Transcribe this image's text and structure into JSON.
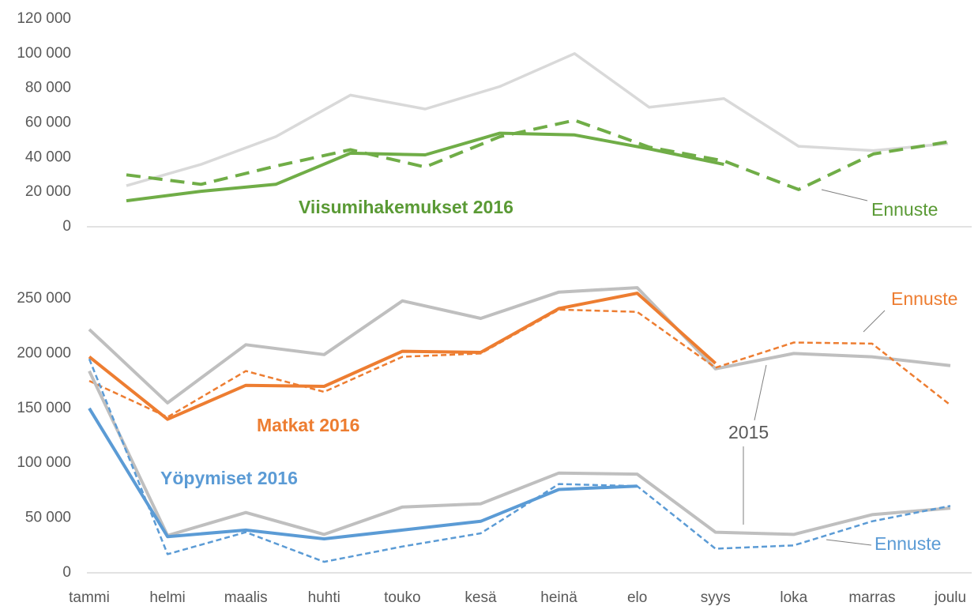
{
  "chart_data": [
    {
      "type": "line",
      "categories": [
        null,
        null,
        null,
        null,
        null,
        null,
        null,
        null,
        null,
        null,
        null,
        null
      ],
      "ylim": [
        0,
        120000
      ],
      "yticks": [
        0,
        {
          "value": 20000,
          "label": "20 000"
        },
        {
          "value": 40000,
          "label": "40 000"
        },
        {
          "value": 60000,
          "label": "60 000"
        },
        {
          "value": 80000,
          "label": "80 000"
        },
        {
          "value": 100000,
          "label": "100 000"
        },
        {
          "value": 120000,
          "label": "120 000"
        }
      ],
      "grid": false,
      "series": [
        {
          "color": "#d9d9d9",
          "dashed": false,
          "values": [
            23700,
            36000,
            52000,
            76000,
            68000,
            81000,
            100000,
            69000,
            74000,
            46500,
            44000,
            48000
          ]
        },
        {
          "color": "#70ad47",
          "dashed": false,
          "values": [
            15000,
            20500,
            24500,
            42500,
            41500,
            54000,
            53000,
            45000,
            36000,
            null,
            null,
            null
          ]
        },
        {
          "color": "#70ad47",
          "dashed": true,
          "values": [
            30000,
            24500,
            35000,
            44500,
            34500,
            52000,
            61500,
            46000,
            38000,
            21500,
            42000,
            49000
          ]
        }
      ],
      "annotations": [
        {
          "text": "Viisumihakemukset 2016",
          "color": "#5a9a35",
          "bold": true
        },
        {
          "text": "Ennuste",
          "color": "#5a9a35",
          "bold": false
        }
      ]
    },
    {
      "type": "line",
      "categories": [
        "tammi",
        "helmi",
        "maalis",
        "huhti",
        "touko",
        "kesä",
        "heinä",
        "elo",
        "syys",
        "loka",
        "marras",
        "joulu"
      ],
      "ylim": [
        0,
        250000
      ],
      "yticks": [
        0,
        {
          "value": 50000,
          "label": "50 000"
        },
        {
          "value": 100000,
          "label": "100 000"
        },
        {
          "value": 150000,
          "label": "150 000"
        },
        {
          "value": 200000,
          "label": "200 000"
        },
        {
          "value": 250000,
          "label": "250 000"
        }
      ],
      "grid": false,
      "series": [
        {
          "color": "#bfbfbf",
          "dashed": false,
          "values": [
            222000,
            155000,
            208000,
            199000,
            248000,
            232000,
            256000,
            260000,
            186000,
            200000,
            197000,
            189000
          ]
        },
        {
          "color": "#ed7d31",
          "dashed": true,
          "values": [
            175000,
            142000,
            184000,
            165000,
            197000,
            200000,
            240000,
            238000,
            187000,
            210000,
            209000,
            153000
          ]
        },
        {
          "color": "#ed7d31",
          "dashed": false,
          "values": [
            197000,
            140000,
            171000,
            170000,
            202000,
            201000,
            241000,
            255000,
            191000,
            null,
            null,
            null
          ]
        },
        {
          "color": "#bfbfbf",
          "dashed": false,
          "values": [
            184000,
            34000,
            55000,
            35000,
            60000,
            63000,
            91000,
            90000,
            37000,
            35000,
            53000,
            59000
          ]
        },
        {
          "color": "#5b9bd5",
          "dashed": true,
          "values": [
            195000,
            17000,
            37000,
            10000,
            24000,
            36000,
            81000,
            79000,
            22000,
            25000,
            47000,
            61000
          ]
        },
        {
          "color": "#5b9bd5",
          "dashed": false,
          "values": [
            150000,
            33000,
            39000,
            31000,
            39000,
            47000,
            76000,
            79000,
            null,
            null,
            null,
            null
          ]
        }
      ],
      "annotations": [
        {
          "text": "Matkat 2016",
          "color": "#ed7d31",
          "bold": true
        },
        {
          "text": "Yöpymiset 2016",
          "color": "#5b9bd5",
          "bold": true
        },
        {
          "text": "2015",
          "color": "#595959",
          "bold": false
        },
        {
          "text": "Ennuste",
          "color": "#ed7d31",
          "bold": false
        },
        {
          "text": "Ennuste",
          "color": "#5b9bd5",
          "bold": false
        }
      ]
    }
  ]
}
